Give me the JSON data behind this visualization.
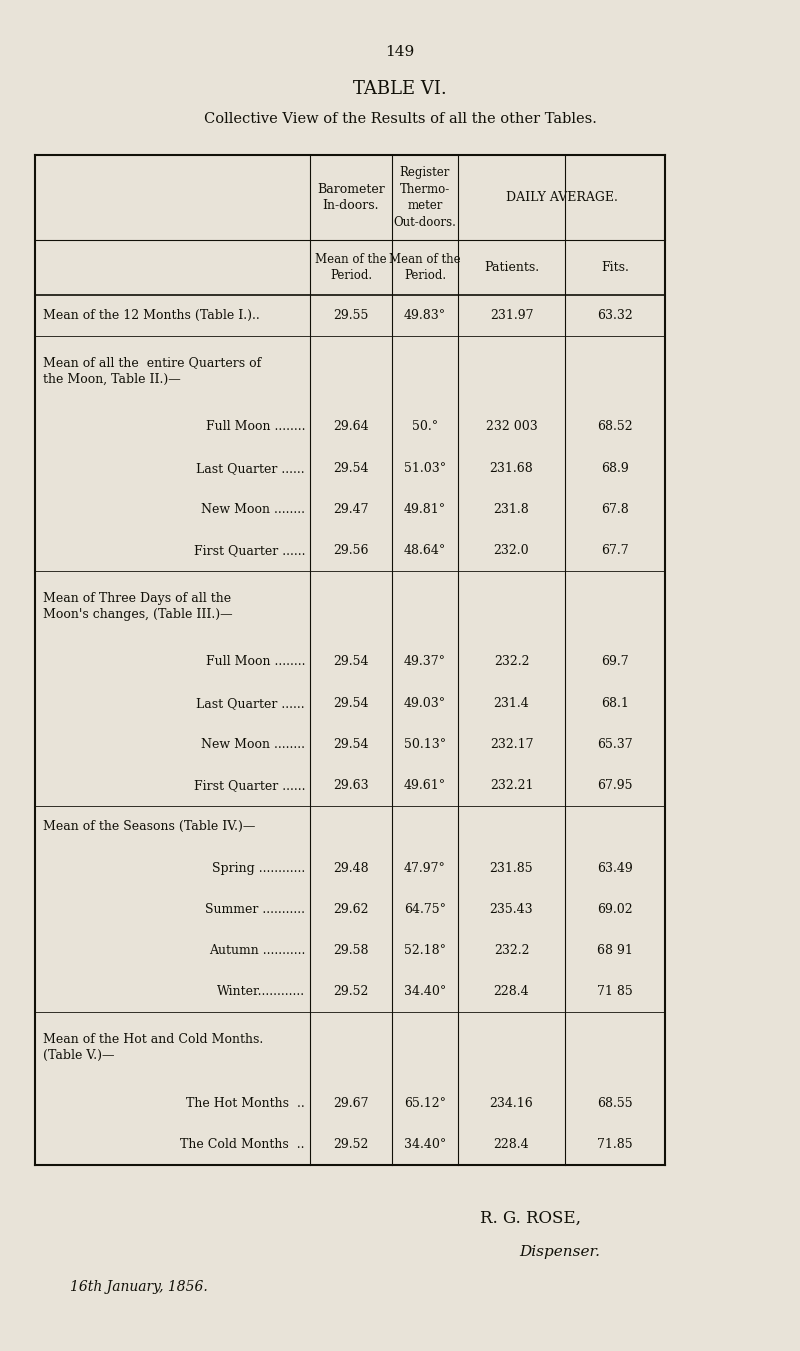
{
  "page_number": "149",
  "title": "TABLE VI.",
  "subtitle": "Collective View of the Results of all the other Tables.",
  "bg_color": "#e8e3d8",
  "text_color": "#111008",
  "rows": [
    {
      "label": "Mean of the 12 Months (Table I.)..",
      "indent": 0,
      "baro": "29.55",
      "thermo": "49.83°",
      "patients": "231.97",
      "fits": "63.32",
      "separator_after": true
    },
    {
      "label": "Mean of all the  entire Quarters of\nthe Moon, Table II.)—",
      "indent": 0,
      "baro": "",
      "thermo": "",
      "patients": "",
      "fits": "",
      "separator_after": false
    },
    {
      "label": "Full Moon ........",
      "indent": 1,
      "baro": "29.64",
      "thermo": "50.°",
      "patients": "232 003",
      "fits": "68.52",
      "separator_after": false
    },
    {
      "label": "Last Quarter ......",
      "indent": 1,
      "baro": "29.54",
      "thermo": "51.03°",
      "patients": "231.68",
      "fits": "68.9",
      "separator_after": false
    },
    {
      "label": "New Moon ........",
      "indent": 1,
      "baro": "29.47",
      "thermo": "49.81°",
      "patients": "231.8",
      "fits": "67.8",
      "separator_after": false
    },
    {
      "label": "First Quarter ......",
      "indent": 1,
      "baro": "29.56",
      "thermo": "48.64°",
      "patients": "232.0",
      "fits": "67.7",
      "separator_after": true
    },
    {
      "label": "Mean of Three Days of all the\nMoon's changes, (Table III.)—",
      "indent": 0,
      "baro": "",
      "thermo": "",
      "patients": "",
      "fits": "",
      "separator_after": false
    },
    {
      "label": "Full Moon ........",
      "indent": 1,
      "baro": "29.54",
      "thermo": "49.37°",
      "patients": "232.2",
      "fits": "69.7",
      "separator_after": false
    },
    {
      "label": "Last Quarter ......",
      "indent": 1,
      "baro": "29.54",
      "thermo": "49.03°",
      "patients": "231.4",
      "fits": "68.1",
      "separator_after": false
    },
    {
      "label": "New Moon ........",
      "indent": 1,
      "baro": "29.54",
      "thermo": "50.13°",
      "patients": "232.17",
      "fits": "65.37",
      "separator_after": false
    },
    {
      "label": "First Quarter ......",
      "indent": 1,
      "baro": "29.63",
      "thermo": "49.61°",
      "patients": "232.21",
      "fits": "67.95",
      "separator_after": true
    },
    {
      "label": "Mean of the Seasons (Table IV.)—",
      "indent": 0,
      "baro": "",
      "thermo": "",
      "patients": "",
      "fits": "",
      "separator_after": false
    },
    {
      "label": "Spring ............",
      "indent": 1,
      "baro": "29.48",
      "thermo": "47.97°",
      "patients": "231.85",
      "fits": "63.49",
      "separator_after": false
    },
    {
      "label": "Summer ...........",
      "indent": 1,
      "baro": "29.62",
      "thermo": "64.75°",
      "patients": "235.43",
      "fits": "69.02",
      "separator_after": false
    },
    {
      "label": "Autumn ...........",
      "indent": 1,
      "baro": "29.58",
      "thermo": "52.18°",
      "patients": "232.2",
      "fits": "68 91",
      "separator_after": false
    },
    {
      "label": "Winter............",
      "indent": 1,
      "baro": "29.52",
      "thermo": "34.40°",
      "patients": "228.4",
      "fits": "71 85",
      "separator_after": true
    },
    {
      "label": "Mean of the Hot and Cold Months.\n(Table V.)—",
      "indent": 0,
      "baro": "",
      "thermo": "",
      "patients": "",
      "fits": "",
      "separator_after": false
    },
    {
      "label": "The Hot Months  ..",
      "indent": 1,
      "baro": "29.67",
      "thermo": "65.12°",
      "patients": "234.16",
      "fits": "68.55",
      "separator_after": false
    },
    {
      "label": "The Cold Months  ..",
      "indent": 1,
      "baro": "29.52",
      "thermo": "34.40°",
      "patients": "228.4",
      "fits": "71.85",
      "separator_after": false
    }
  ],
  "footer_right1": "R. G. ROSE,",
  "footer_right2": "Dispenser.",
  "footer_left": "16th January, 1856."
}
